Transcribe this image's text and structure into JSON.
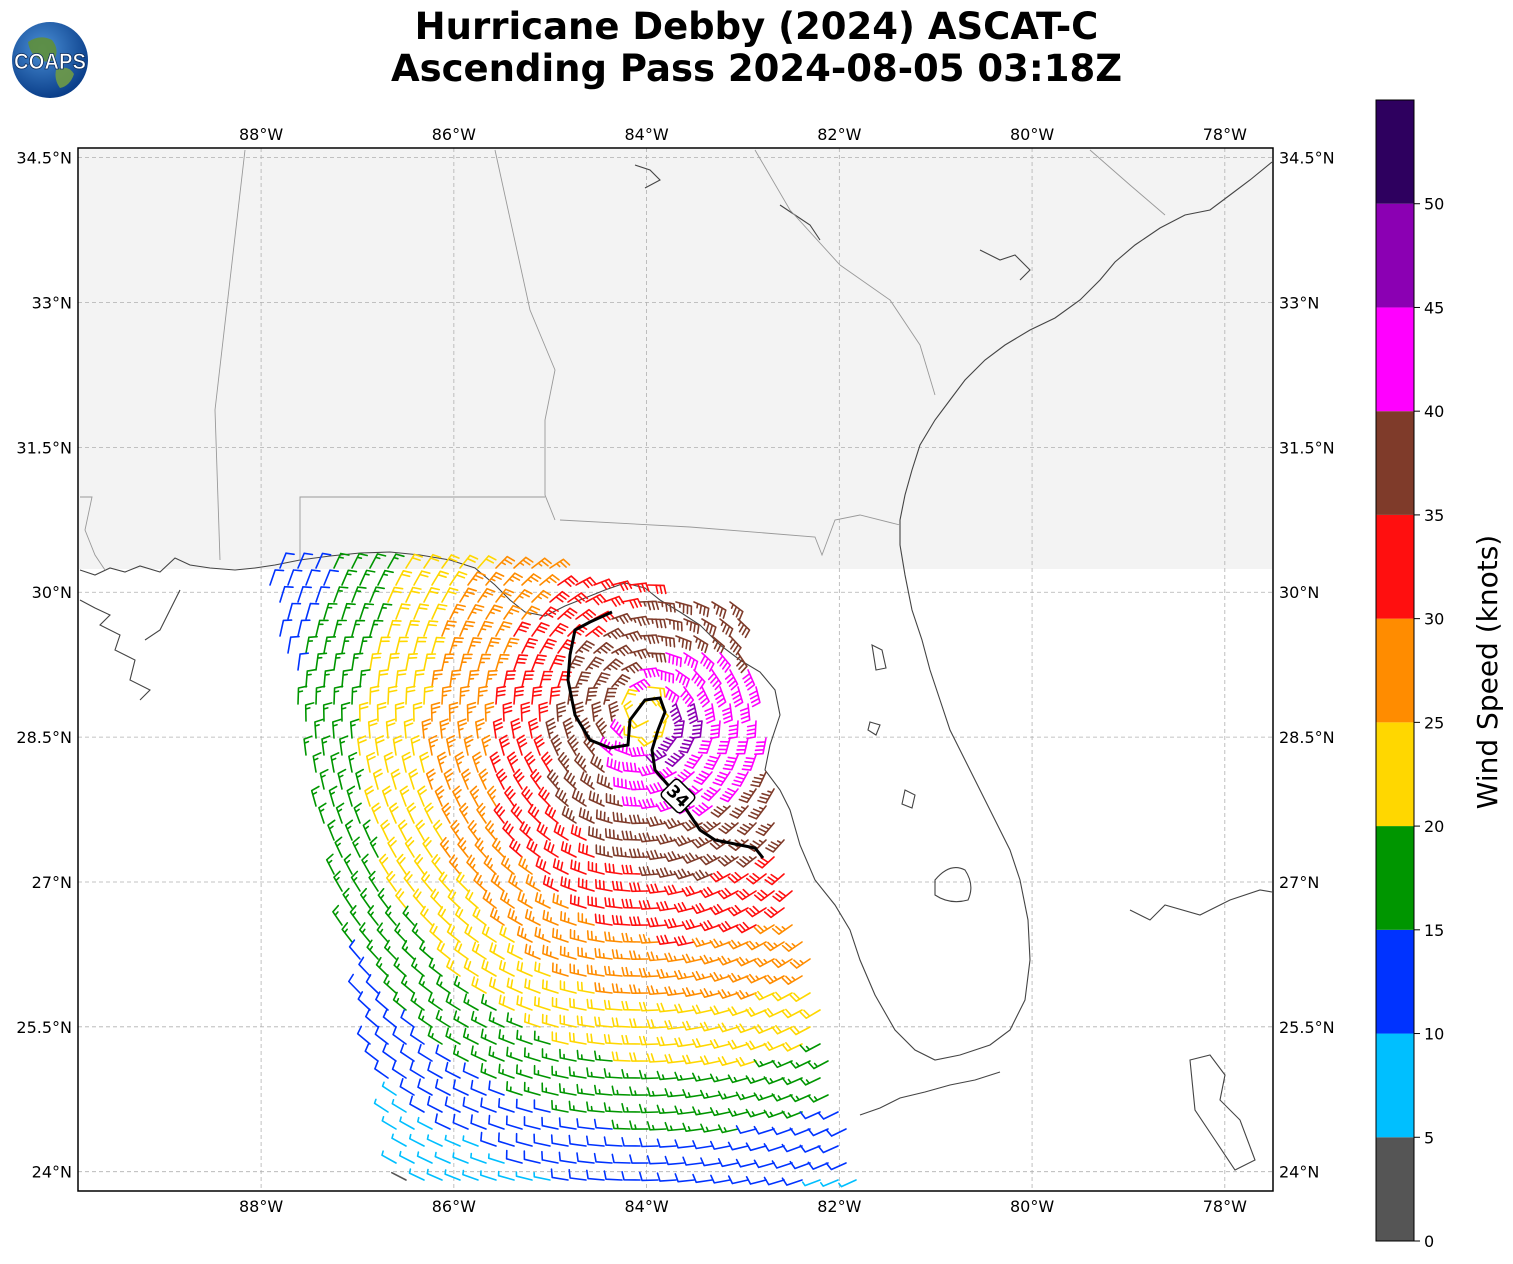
{
  "title": {
    "line1": "Hurricane Debby (2024) ASCAT-C",
    "line2": "Ascending Pass 2024-08-05 03:18Z"
  },
  "logo": {
    "text": "COAPS",
    "icon": "globe-icon"
  },
  "map": {
    "lon_range": [
      -89.9,
      -77.5
    ],
    "lat_range": [
      23.8,
      34.6
    ],
    "lon_ticks": [
      "88°W",
      "86°W",
      "84°W",
      "82°W",
      "80°W",
      "78°W"
    ],
    "lon_tick_values": [
      -88,
      -86,
      -84,
      -82,
      -80,
      -78
    ],
    "lat_ticks": [
      "34.5°N",
      "33°N",
      "31.5°N",
      "30°N",
      "28.5°N",
      "27°N",
      "25.5°N",
      "24°N"
    ],
    "lat_tick_values": [
      34.5,
      33,
      31.5,
      30,
      28.5,
      27,
      25.5,
      24
    ],
    "gridlines": true,
    "contour_label": "34",
    "colors": {
      "land_outline": "#444444",
      "state_border": "#999999",
      "contour": "#000000"
    }
  },
  "colorbar": {
    "label": "Wind Speed (knots)",
    "ticks": [
      "0",
      "5",
      "10",
      "15",
      "20",
      "25",
      "30",
      "35",
      "40",
      "45",
      "50"
    ],
    "bins": [
      {
        "from": 0,
        "to": 5,
        "color": "#555555"
      },
      {
        "from": 5,
        "to": 10,
        "color": "#00bfff"
      },
      {
        "from": 10,
        "to": 15,
        "color": "#0033ff"
      },
      {
        "from": 15,
        "to": 20,
        "color": "#009600"
      },
      {
        "from": 20,
        "to": 25,
        "color": "#ffd700"
      },
      {
        "from": 25,
        "to": 30,
        "color": "#ff8c00"
      },
      {
        "from": 30,
        "to": 35,
        "color": "#ff0f0f"
      },
      {
        "from": 35,
        "to": 40,
        "color": "#7f3b2a"
      },
      {
        "from": 40,
        "to": 45,
        "color": "#ff00ff"
      },
      {
        "from": 45,
        "to": 50,
        "color": "#8b00b3"
      },
      {
        "from": 50,
        "to": 55,
        "color": "#2e005f"
      }
    ]
  }
}
